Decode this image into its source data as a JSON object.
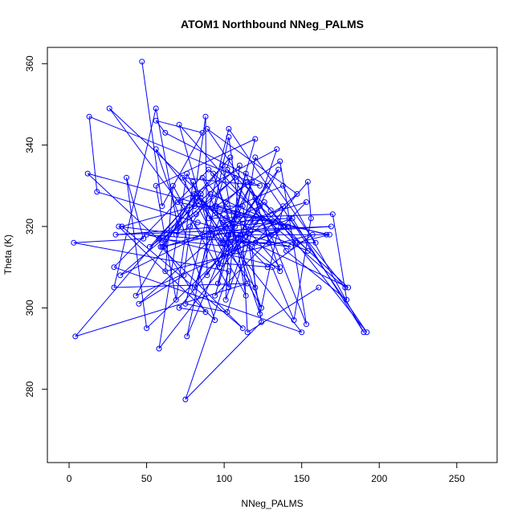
{
  "chart_data": {
    "type": "line",
    "title": "ATOM1 Northbound NNeg_PALMS",
    "xlabel": "NNeg_PALMS",
    "ylabel": "Theta (K)",
    "xlim": [
      -14,
      276
    ],
    "ylim": [
      262,
      364
    ],
    "x_ticks": [
      0,
      50,
      100,
      150,
      200,
      250
    ],
    "y_ticks": [
      280,
      300,
      320,
      340,
      360
    ],
    "grid": false,
    "line_color": "#0000ff",
    "marker": "open-circle",
    "points": [
      [
        47,
        360.5
      ],
      [
        60,
        325
      ],
      [
        86,
        343
      ],
      [
        56,
        346
      ],
      [
        62,
        343
      ],
      [
        128,
        330
      ],
      [
        107,
        320
      ],
      [
        83,
        327
      ],
      [
        80,
        331
      ],
      [
        69,
        302
      ],
      [
        56,
        330
      ],
      [
        120,
        341.5
      ],
      [
        97,
        310
      ],
      [
        71,
        345
      ],
      [
        124,
        322
      ],
      [
        50,
        295
      ],
      [
        37,
        332
      ],
      [
        48,
        317
      ],
      [
        3,
        316
      ],
      [
        103,
        309
      ],
      [
        75,
        277.5
      ],
      [
        124,
        296.5
      ],
      [
        112,
        325
      ],
      [
        81,
        325
      ],
      [
        34,
        320
      ],
      [
        112,
        295
      ],
      [
        59,
        315
      ],
      [
        99,
        335
      ],
      [
        114,
        303
      ],
      [
        73,
        332
      ],
      [
        123,
        330
      ],
      [
        13,
        347
      ],
      [
        18,
        328.5
      ],
      [
        83,
        321
      ],
      [
        143,
        315
      ],
      [
        32,
        320
      ],
      [
        94,
        297
      ],
      [
        56,
        339
      ],
      [
        150,
        294
      ],
      [
        29,
        310
      ],
      [
        90,
        334
      ],
      [
        178,
        305
      ],
      [
        142,
        322
      ],
      [
        99,
        321
      ],
      [
        85,
        327
      ],
      [
        124,
        300
      ],
      [
        93,
        333
      ],
      [
        123,
        298.5
      ],
      [
        138,
        325
      ],
      [
        120,
        321
      ],
      [
        102,
        299
      ],
      [
        75,
        301
      ],
      [
        103,
        344
      ],
      [
        192,
        294
      ],
      [
        138,
        320
      ],
      [
        91,
        328
      ],
      [
        78,
        320
      ],
      [
        69,
        318
      ],
      [
        85,
        328
      ],
      [
        26,
        349
      ],
      [
        86,
        318
      ],
      [
        169,
        320
      ],
      [
        30,
        318
      ],
      [
        133,
        321
      ],
      [
        60,
        315
      ],
      [
        70,
        320
      ],
      [
        56,
        349
      ],
      [
        29,
        305
      ],
      [
        115,
        306
      ],
      [
        4,
        293
      ],
      [
        80,
        327
      ],
      [
        60,
        316
      ],
      [
        12,
        333
      ],
      [
        109,
        323
      ],
      [
        101,
        320
      ],
      [
        45,
        301
      ],
      [
        74,
        308
      ],
      [
        88,
        347
      ],
      [
        89,
        308
      ],
      [
        104,
        318
      ],
      [
        96,
        306
      ],
      [
        114,
        333
      ],
      [
        136,
        309
      ],
      [
        108,
        318
      ],
      [
        180,
        305
      ],
      [
        123,
        325
      ],
      [
        33,
        308
      ],
      [
        107,
        332
      ],
      [
        82,
        323
      ],
      [
        52,
        315
      ],
      [
        104,
        337
      ],
      [
        94,
        325
      ],
      [
        141,
        320
      ],
      [
        43,
        303
      ],
      [
        81,
        328
      ],
      [
        128,
        310
      ],
      [
        157,
        318
      ],
      [
        62,
        309
      ],
      [
        67,
        330
      ],
      [
        103,
        305
      ],
      [
        110,
        335
      ],
      [
        58,
        317
      ],
      [
        104,
        315
      ],
      [
        94,
        303
      ],
      [
        153,
        326
      ],
      [
        61,
        315
      ],
      [
        88,
        299
      ],
      [
        71,
        300
      ],
      [
        126,
        326
      ],
      [
        146,
        316
      ],
      [
        99,
        316
      ],
      [
        76,
        333
      ],
      [
        58,
        290
      ],
      [
        109,
        315
      ],
      [
        135,
        334
      ],
      [
        103,
        318
      ],
      [
        94,
        324
      ],
      [
        101,
        322
      ],
      [
        154,
        314
      ],
      [
        130,
        324
      ],
      [
        102,
        334
      ],
      [
        130,
        318
      ],
      [
        153,
        296
      ],
      [
        136,
        336
      ],
      [
        95,
        325
      ],
      [
        166,
        318
      ],
      [
        112,
        318
      ],
      [
        120,
        337
      ],
      [
        159,
        316
      ],
      [
        147,
        316
      ],
      [
        168,
        318
      ],
      [
        70,
        326
      ],
      [
        134,
        339
      ],
      [
        101,
        302
      ],
      [
        103,
        316
      ],
      [
        86,
        332
      ],
      [
        136,
        310
      ],
      [
        50,
        318
      ],
      [
        120,
        316
      ],
      [
        129,
        316
      ],
      [
        120,
        327
      ],
      [
        106,
        314
      ],
      [
        134,
        319
      ],
      [
        89,
        344
      ],
      [
        147,
        328
      ],
      [
        96,
        311
      ],
      [
        131,
        310
      ],
      [
        145,
        297
      ],
      [
        156,
        322
      ],
      [
        154,
        331
      ],
      [
        118,
        315
      ],
      [
        120,
        305
      ],
      [
        92,
        319
      ],
      [
        81,
        305
      ],
      [
        101,
        326
      ],
      [
        115,
        331
      ],
      [
        140,
        314
      ],
      [
        179,
        302
      ],
      [
        170,
        323
      ],
      [
        90,
        322
      ],
      [
        138,
        330
      ],
      [
        190,
        294
      ],
      [
        144,
        322
      ],
      [
        98,
        316
      ],
      [
        118,
        331
      ],
      [
        76,
        293
      ],
      [
        103,
        342
      ],
      [
        112,
        317
      ],
      [
        115,
        294
      ],
      [
        161,
        305
      ]
    ]
  }
}
